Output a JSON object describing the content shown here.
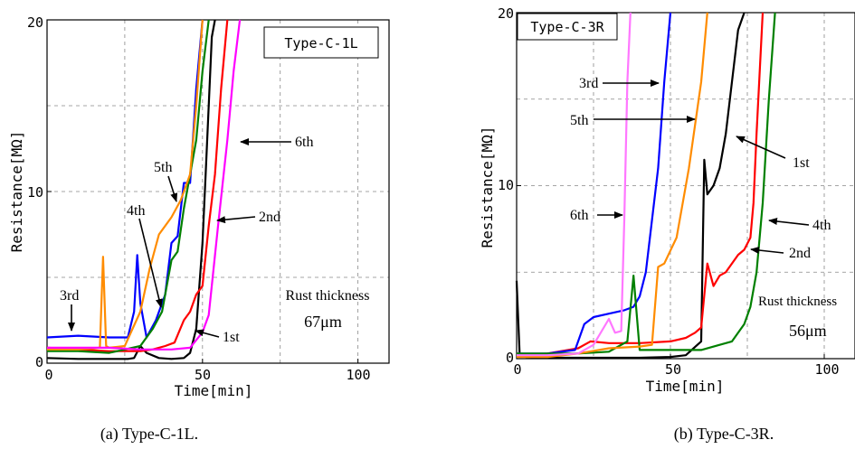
{
  "chart_data": [
    {
      "type": "line",
      "box_label": "Type-C-1L",
      "caption": "(a)  Type-C-1L.",
      "xlabel": "Time[min]",
      "ylabel": "Resistance[MΩ]",
      "xlim": [
        0,
        110
      ],
      "ylim": [
        0,
        20
      ],
      "xticks": [
        0,
        50,
        100
      ],
      "yticks": [
        0,
        10,
        20
      ],
      "xtick_labels": [
        "0",
        "50",
        "100"
      ],
      "ytick_labels": [
        "0",
        "10",
        "20"
      ],
      "grid": true,
      "note": "Rust thickness",
      "note_value": "67μm",
      "series": [
        {
          "name": "1st",
          "color": "#000000",
          "x": [
            0,
            10,
            20,
            26,
            28,
            30,
            32,
            36,
            40,
            44,
            46,
            48,
            50,
            51,
            52,
            53,
            54
          ],
          "y": [
            0.3,
            0.25,
            0.25,
            0.25,
            0.3,
            1.0,
            0.6,
            0.3,
            0.25,
            0.3,
            0.6,
            2.0,
            7,
            11,
            15,
            19,
            20
          ]
        },
        {
          "name": "2nd",
          "color": "#ff0000",
          "x": [
            0,
            10,
            20,
            30,
            34,
            38,
            41,
            44,
            46,
            48,
            50,
            52,
            54,
            56,
            58
          ],
          "y": [
            0.9,
            0.8,
            0.7,
            0.7,
            0.8,
            1.0,
            1.2,
            2.5,
            3.0,
            4.0,
            4.5,
            8,
            11,
            16,
            20
          ]
        },
        {
          "name": "3rd",
          "color": "#0000ff",
          "x": [
            0,
            10,
            20,
            26,
            28,
            29,
            30,
            32,
            35,
            38,
            40,
            42,
            44,
            46,
            48,
            50
          ],
          "y": [
            1.5,
            1.6,
            1.5,
            1.5,
            3.0,
            6.3,
            3.5,
            1.5,
            2.5,
            4.0,
            7.0,
            7.4,
            10.5,
            10.5,
            16,
            20
          ]
        },
        {
          "name": "4th",
          "color": "#008000",
          "x": [
            0,
            10,
            20,
            25,
            30,
            34,
            37,
            40,
            42,
            44,
            46,
            48,
            50,
            52
          ],
          "y": [
            0.7,
            0.7,
            0.6,
            0.8,
            1.0,
            2.0,
            3.0,
            6.0,
            6.5,
            9.0,
            11.0,
            13.0,
            17.0,
            20
          ]
        },
        {
          "name": "5th",
          "color": "#ff8c00",
          "x": [
            0,
            10,
            17,
            18,
            19,
            20,
            25,
            30,
            33,
            36,
            40,
            43,
            46,
            48,
            50
          ],
          "y": [
            0.8,
            0.8,
            0.9,
            6.2,
            1.0,
            0.9,
            1.0,
            3.0,
            5.5,
            7.5,
            8.5,
            9.5,
            11.0,
            15.0,
            20
          ]
        },
        {
          "name": "6th",
          "color": "#ff00ff",
          "x": [
            0,
            10,
            20,
            30,
            40,
            46,
            50,
            52,
            55,
            58,
            60,
            62
          ],
          "y": [
            0.9,
            0.9,
            0.9,
            0.8,
            0.8,
            0.9,
            1.8,
            2.8,
            8.0,
            13.0,
            17.0,
            20
          ]
        }
      ],
      "annotations": [
        {
          "text": "3rd",
          "series": "3rd"
        },
        {
          "text": "4th",
          "series": "4th"
        },
        {
          "text": "5th",
          "series": "5th"
        },
        {
          "text": "6th",
          "series": "6th"
        },
        {
          "text": "2nd",
          "series": "2nd"
        },
        {
          "text": "1st",
          "series": "1st"
        }
      ]
    },
    {
      "type": "line",
      "box_label": "Type-C-3R",
      "caption": "(b) Type-C-3R.",
      "xlabel": "Time[min]",
      "ylabel": "Resistance[MΩ]",
      "xlim": [
        0,
        110
      ],
      "ylim": [
        0,
        20
      ],
      "xticks": [
        0,
        50,
        100
      ],
      "yticks": [
        0,
        10,
        20
      ],
      "xtick_labels": [
        "0",
        "50",
        "100"
      ],
      "ytick_labels": [
        "0",
        "10",
        "20"
      ],
      "grid": true,
      "note": "Rust thickness",
      "note_value": "56μm",
      "series": [
        {
          "name": "1st",
          "color": "#000000",
          "x": [
            0,
            1,
            3,
            10,
            20,
            30,
            40,
            50,
            55,
            60,
            61,
            62,
            64,
            66,
            68,
            70,
            72,
            74
          ],
          "y": [
            4.5,
            0.2,
            0.1,
            0.05,
            0.05,
            0.05,
            0.05,
            0.1,
            0.2,
            1.0,
            11.5,
            9.5,
            10.0,
            11.0,
            13.0,
            16.0,
            19.0,
            20
          ]
        },
        {
          "name": "2nd",
          "color": "#ff0000",
          "x": [
            0,
            10,
            20,
            24,
            30,
            40,
            50,
            55,
            58,
            60,
            62,
            64,
            66,
            68,
            72,
            74,
            76,
            77,
            78,
            80
          ],
          "y": [
            0.2,
            0.3,
            0.6,
            1.0,
            0.9,
            0.9,
            1.0,
            1.2,
            1.5,
            1.8,
            5.5,
            4.2,
            4.8,
            5.0,
            6.0,
            6.3,
            7.0,
            9.0,
            13.0,
            20
          ]
        },
        {
          "name": "3rd",
          "color": "#0000ff",
          "x": [
            0,
            10,
            19,
            22,
            25,
            30,
            35,
            38,
            40,
            42,
            44,
            46,
            48,
            50
          ],
          "y": [
            0.3,
            0.3,
            0.5,
            2.0,
            2.4,
            2.6,
            2.8,
            3.0,
            3.6,
            5.0,
            8.0,
            11.0,
            16.0,
            20
          ]
        },
        {
          "name": "4th",
          "color": "#008000",
          "x": [
            0,
            10,
            20,
            30,
            36,
            38,
            40,
            50,
            60,
            70,
            74,
            76,
            78,
            80,
            82,
            84
          ],
          "y": [
            0.3,
            0.3,
            0.3,
            0.4,
            1.0,
            4.8,
            0.5,
            0.5,
            0.5,
            1.0,
            2.0,
            3.0,
            5.0,
            9.0,
            15.0,
            20
          ]
        },
        {
          "name": "5th",
          "color": "#ff8c00",
          "x": [
            0,
            10,
            20,
            30,
            40,
            44,
            46,
            48,
            52,
            54,
            56,
            58,
            60,
            62
          ],
          "y": [
            0.1,
            0.1,
            0.3,
            0.6,
            0.7,
            0.8,
            5.3,
            5.5,
            7.0,
            9.0,
            11.0,
            13.5,
            16.0,
            20
          ]
        },
        {
          "name": "6th",
          "color": "#ff77ff",
          "x": [
            0,
            10,
            20,
            25,
            30,
            32,
            34,
            35,
            36,
            37
          ],
          "y": [
            0.2,
            0.2,
            0.3,
            0.8,
            2.3,
            1.5,
            1.6,
            8.0,
            16.0,
            20
          ]
        }
      ],
      "annotations": [
        {
          "text": "3rd",
          "series": "3rd"
        },
        {
          "text": "5th",
          "series": "5th"
        },
        {
          "text": "1st",
          "series": "1st"
        },
        {
          "text": "6th",
          "series": "6th"
        },
        {
          "text": "4th",
          "series": "4th"
        },
        {
          "text": "2nd",
          "series": "2nd"
        }
      ]
    }
  ]
}
